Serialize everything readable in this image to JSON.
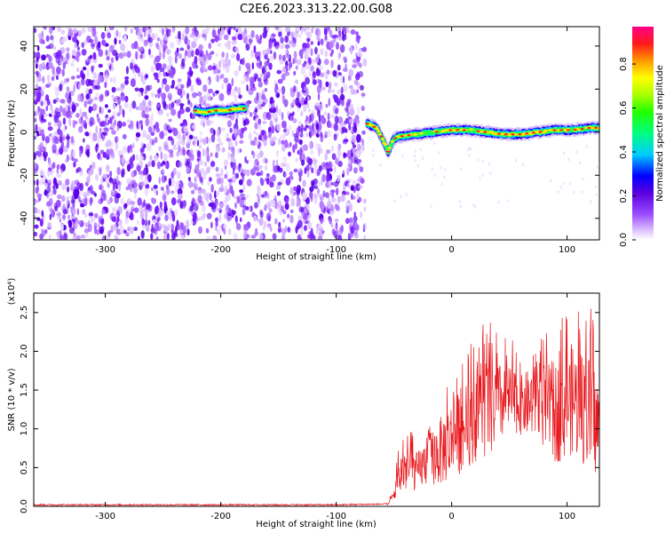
{
  "title": "C2E6.2023.313.22.00.G08",
  "colors": {
    "snr_line": "#e8161b",
    "frame": "#000000"
  },
  "chart_data": [
    {
      "type": "heatmap",
      "xlabel": "Height of straight line (km)",
      "ylabel": "Frequency (Hz)",
      "xlim": [
        -362,
        128
      ],
      "ylim": [
        -50,
        49
      ],
      "xticks": [
        -300,
        -200,
        -100,
        0,
        100
      ],
      "yticks": [
        -40,
        -20,
        0,
        20,
        40
      ],
      "colorbar": {
        "label": "Normalized spectral amplitude",
        "range": [
          0.0,
          0.97
        ],
        "ticks": [
          0.0,
          0.2,
          0.4,
          0.6,
          0.8
        ],
        "tick_labels": [
          "0.0",
          "0.2",
          "0.4",
          "0.6",
          "0.8"
        ]
      },
      "noise_region_x": [
        -362,
        -75
      ],
      "signal_track": [
        {
          "x": -222,
          "freq": 10
        },
        {
          "x": -215,
          "freq": 9
        },
        {
          "x": -205,
          "freq": 10
        },
        {
          "x": -195,
          "freq": 10
        },
        {
          "x": -185,
          "freq": 11
        },
        {
          "x": -178,
          "freq": 11
        }
      ],
      "main_track": [
        {
          "x": -73,
          "freq": 4
        },
        {
          "x": -65,
          "freq": 2
        },
        {
          "x": -60,
          "freq": -3
        },
        {
          "x": -55,
          "freq": -9
        },
        {
          "x": -50,
          "freq": -3
        },
        {
          "x": -45,
          "freq": -2
        },
        {
          "x": -30,
          "freq": -1
        },
        {
          "x": -15,
          "freq": 0
        },
        {
          "x": 0,
          "freq": 1
        },
        {
          "x": 15,
          "freq": 1
        },
        {
          "x": 30,
          "freq": 0
        },
        {
          "x": 45,
          "freq": -1
        },
        {
          "x": 60,
          "freq": -1
        },
        {
          "x": 75,
          "freq": 0
        },
        {
          "x": 90,
          "freq": 1
        },
        {
          "x": 105,
          "freq": 1
        },
        {
          "x": 120,
          "freq": 2
        },
        {
          "x": 128,
          "freq": 2
        }
      ]
    },
    {
      "type": "line",
      "xlabel": "Height of straight line (km)",
      "ylabel": "SNR (10 * v/v)",
      "yscale_label": "(x10⁴)",
      "xlim": [
        -362,
        128
      ],
      "ylim": [
        0,
        2.75
      ],
      "xticks": [
        -300,
        -200,
        -100,
        0,
        100
      ],
      "yticks": [
        0.0,
        0.5,
        1.0,
        1.5,
        2.0,
        2.5
      ],
      "ytick_labels": [
        "0.0",
        "0.5",
        "1.0",
        "1.5",
        "2.0",
        "2.5"
      ],
      "series": [
        {
          "envelope": [
            {
              "x": -362,
              "mean": 0.02,
              "peak": 0.03
            },
            {
              "x": -100,
              "mean": 0.02,
              "peak": 0.03
            },
            {
              "x": -55,
              "mean": 0.03,
              "peak": 0.05
            },
            {
              "x": -50,
              "mean": 0.15,
              "peak": 0.3
            },
            {
              "x": -45,
              "mean": 0.4,
              "peak": 0.9
            },
            {
              "x": -40,
              "mean": 0.5,
              "peak": 1.1
            },
            {
              "x": -30,
              "mean": 0.45,
              "peak": 0.9
            },
            {
              "x": -20,
              "mean": 0.6,
              "peak": 1.2
            },
            {
              "x": -10,
              "mean": 0.7,
              "peak": 1.5
            },
            {
              "x": 0,
              "mean": 0.85,
              "peak": 1.8
            },
            {
              "x": 10,
              "mean": 1.0,
              "peak": 2.0
            },
            {
              "x": 20,
              "mean": 1.15,
              "peak": 2.2
            },
            {
              "x": 30,
              "mean": 1.25,
              "peak": 2.5
            },
            {
              "x": 40,
              "mean": 1.3,
              "peak": 2.3
            },
            {
              "x": 50,
              "mean": 1.4,
              "peak": 2.2
            },
            {
              "x": 60,
              "mean": 1.3,
              "peak": 2.0
            },
            {
              "x": 70,
              "mean": 1.35,
              "peak": 2.2
            },
            {
              "x": 80,
              "mean": 1.3,
              "peak": 2.3
            },
            {
              "x": 90,
              "mean": 1.2,
              "peak": 2.4
            },
            {
              "x": 100,
              "mean": 1.3,
              "peak": 2.5
            },
            {
              "x": 105,
              "mean": 1.4,
              "peak": 2.75
            },
            {
              "x": 110,
              "mean": 1.3,
              "peak": 2.6
            },
            {
              "x": 120,
              "mean": 1.2,
              "peak": 2.6
            },
            {
              "x": 128,
              "mean": 1.0,
              "peak": 2.2
            }
          ]
        }
      ]
    }
  ]
}
